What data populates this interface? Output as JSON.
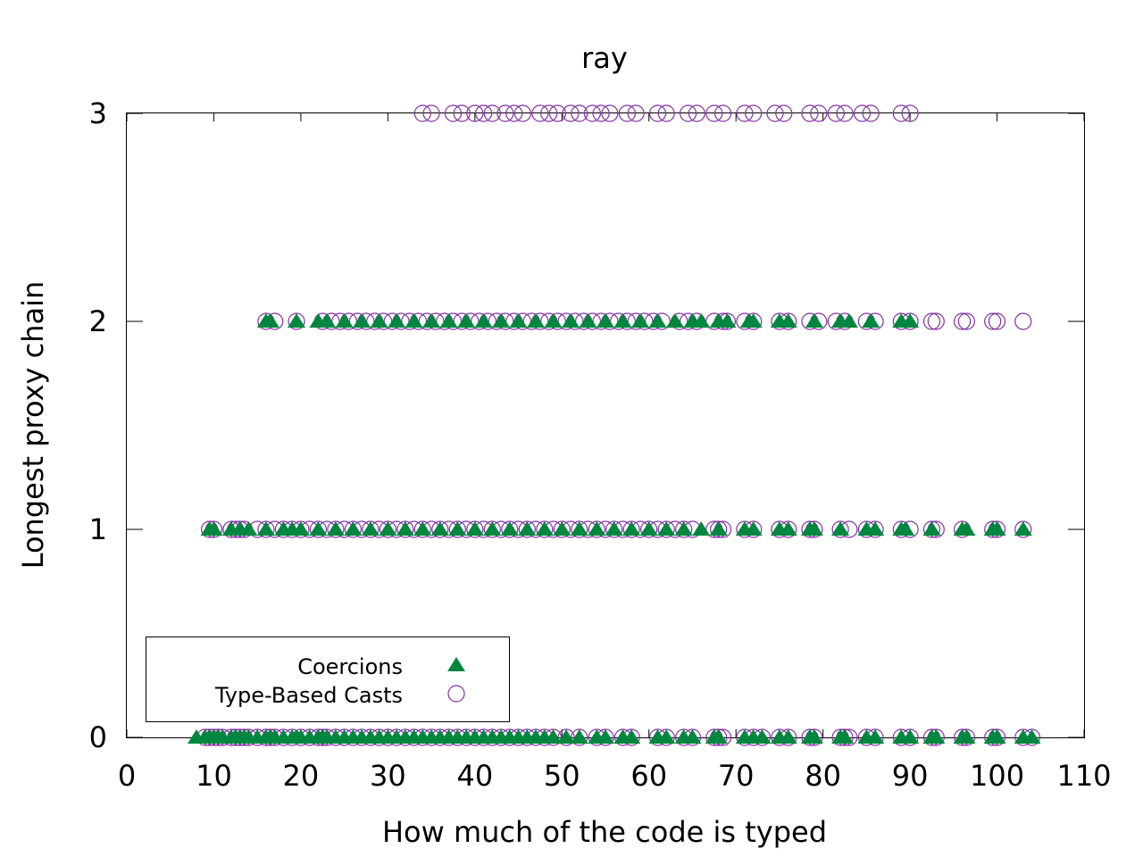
{
  "chart_data": {
    "type": "scatter",
    "title": "ray",
    "xlabel": "How much of the code is typed",
    "ylabel": "Longest proxy chain",
    "xlim": [
      0,
      110
    ],
    "ylim": [
      0,
      3
    ],
    "xticks": [
      "0",
      "10",
      "20",
      "30",
      "40",
      "50",
      "60",
      "70",
      "80",
      "90",
      "100",
      "110"
    ],
    "yticks": [
      "0",
      "1",
      "2",
      "3"
    ],
    "grid": false,
    "legend_position": "bottom-left",
    "series": [
      {
        "name": "Coercions",
        "marker": "filled-triangle",
        "color": "#00873f",
        "levels": [
          {
            "y": 0,
            "x": [
              8,
              9,
              9.5,
              10,
              10.5,
              11,
              12,
              12.5,
              13,
              13.5,
              14,
              15,
              16,
              16.5,
              17,
              18,
              19,
              19.5,
              20,
              21,
              22,
              22.5,
              23,
              24,
              25,
              26,
              27,
              28,
              29,
              30,
              31,
              32,
              33,
              34,
              35,
              36,
              37,
              38,
              39,
              40,
              41,
              42,
              43,
              44,
              45,
              46,
              47,
              48,
              49,
              50.5,
              52,
              54,
              55,
              57,
              58,
              61,
              62,
              64,
              65,
              67.5,
              68,
              71,
              72,
              73,
              75,
              76,
              78.5,
              79,
              82,
              82.5,
              85,
              86,
              89,
              90,
              92.5,
              93,
              96,
              96.5,
              99.5,
              100,
              103,
              104
            ]
          },
          {
            "y": 1,
            "x": [
              9.5,
              10,
              12,
              13,
              14,
              16,
              18,
              19,
              20,
              22,
              24,
              26,
              28,
              30,
              32,
              34,
              36,
              38,
              40,
              42,
              44,
              46,
              48,
              50,
              52,
              54,
              56,
              58,
              60,
              62,
              64,
              66,
              68,
              71,
              72,
              75,
              76,
              78.5,
              79,
              82,
              85,
              86,
              89,
              89.5,
              92.5,
              96,
              96.5,
              99.5,
              100,
              103
            ]
          },
          {
            "y": 2,
            "x": [
              16,
              16.5,
              19.5,
              22,
              23,
              25,
              27,
              29,
              31,
              33,
              35,
              37,
              39,
              41,
              43,
              45,
              47,
              49,
              51,
              53,
              55,
              57,
              59,
              61,
              63,
              65,
              66,
              68,
              69,
              71.5,
              72,
              75,
              76,
              79,
              82,
              83,
              85.5,
              89,
              90
            ]
          }
        ]
      },
      {
        "name": "Type-Based Casts",
        "marker": "open-circle",
        "color": "#8030a0",
        "levels": [
          {
            "y": 0,
            "x": [
              9,
              9.5,
              10,
              10.5,
              11,
              12,
              12.5,
              13,
              13.5,
              14,
              15,
              16,
              16.5,
              17,
              18,
              19,
              20,
              21,
              22,
              22.5,
              23,
              24,
              25,
              26,
              27,
              28,
              29,
              30,
              31,
              32,
              33,
              34,
              35,
              36,
              37,
              38,
              39,
              40,
              41,
              42,
              43,
              44,
              45,
              46,
              47,
              48,
              49,
              50.5,
              52,
              54,
              55,
              57,
              58,
              61,
              62,
              64,
              65,
              67.5,
              68,
              68.5,
              71,
              72,
              73,
              75,
              76,
              78.5,
              79,
              82,
              82.5,
              83,
              85,
              86,
              89,
              90,
              92.5,
              93,
              96,
              96.5,
              99.5,
              100,
              103,
              104
            ]
          },
          {
            "y": 1,
            "x": [
              9.5,
              10,
              12,
              12.5,
              13,
              13.5,
              15,
              16,
              17,
              18,
              19,
              20,
              21,
              22,
              23,
              24,
              25,
              26,
              27,
              28,
              29,
              30,
              31,
              32,
              33,
              34,
              35,
              36,
              37,
              38,
              39,
              40,
              41,
              42,
              43,
              44,
              45,
              46,
              47,
              48,
              49,
              50,
              51,
              52,
              53,
              54,
              55,
              56,
              57,
              58,
              59,
              60,
              61,
              62,
              63,
              64,
              65,
              67.5,
              68,
              68.5,
              71,
              72,
              75,
              76,
              78.5,
              79,
              82,
              83,
              85,
              86,
              89,
              90,
              92.5,
              93,
              96,
              99.5,
              100,
              103
            ]
          },
          {
            "y": 2,
            "x": [
              16,
              17,
              19.5,
              22.5,
              23.5,
              24.5,
              25.5,
              26.5,
              27.5,
              28.5,
              29.5,
              30.5,
              31.5,
              32.5,
              33.5,
              34.5,
              35.5,
              36.5,
              37.5,
              38.5,
              39.5,
              40.5,
              41.5,
              42.5,
              43.5,
              44.5,
              45.5,
              46.5,
              47.5,
              48.5,
              49.5,
              50.5,
              51.5,
              52.5,
              53.5,
              54.5,
              55.5,
              56.5,
              57.5,
              58.5,
              59.5,
              60.5,
              61.5,
              63.5,
              64.5,
              65.5,
              67.5,
              68.5,
              69,
              71,
              72,
              75,
              76,
              78.5,
              79.5,
              81.5,
              82.5,
              85,
              86,
              89,
              90,
              92.5,
              93,
              96,
              96.5,
              99.5,
              100,
              103
            ]
          },
          {
            "y": 3,
            "x": [
              34,
              35,
              37.5,
              38.5,
              40,
              41,
              42,
              43.5,
              44.5,
              45.5,
              47.5,
              48.5,
              49.5,
              51,
              52,
              53.5,
              54.5,
              55.5,
              57.5,
              58.5,
              61,
              62,
              64.5,
              65.5,
              67.5,
              68.5,
              71,
              72,
              74.5,
              75.5,
              78.5,
              79.5,
              81.5,
              82.5,
              84.5,
              85.5,
              89,
              90
            ]
          }
        ]
      }
    ]
  }
}
